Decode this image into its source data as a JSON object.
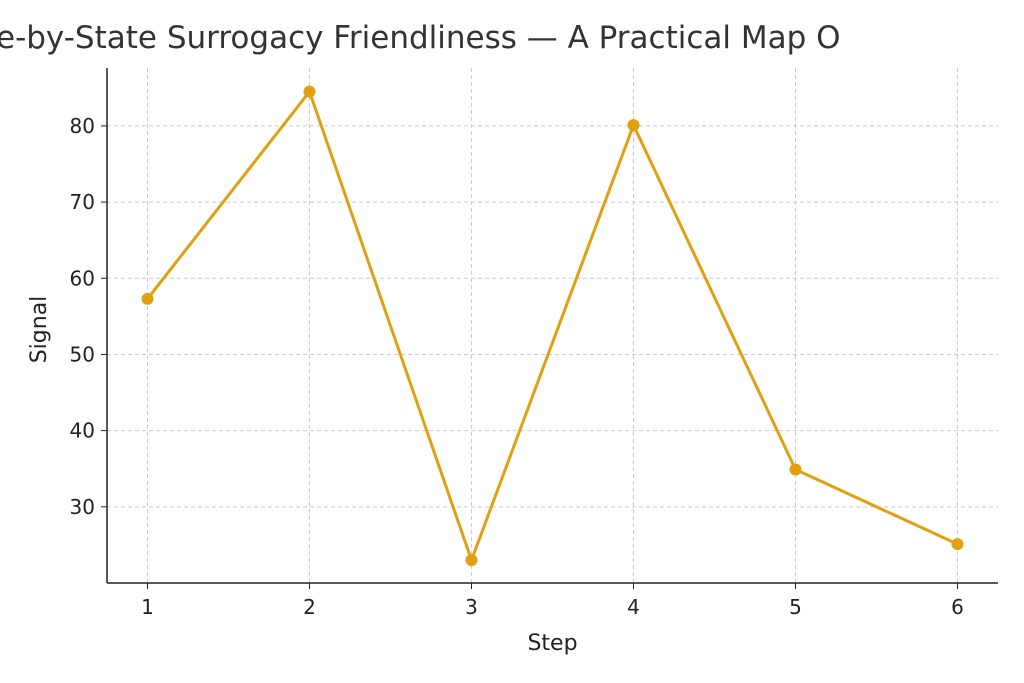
{
  "chart_data": {
    "type": "line",
    "title": "e-by-State Surrogacy Friendliness — A Practical Map O",
    "xlabel": "Step",
    "ylabel": "Signal",
    "x": [
      1,
      2,
      3,
      4,
      5,
      6
    ],
    "values": [
      57.3,
      84.5,
      23.0,
      80.1,
      34.9,
      25.1
    ],
    "xticks": [
      1,
      2,
      3,
      4,
      5,
      6
    ],
    "yticks": [
      30,
      40,
      50,
      60,
      70,
      80
    ],
    "xlim": [
      0.75,
      6.25
    ],
    "ylim": [
      20,
      87.6
    ],
    "grid": true,
    "line_color": "#E0A010",
    "marker": "circle"
  }
}
